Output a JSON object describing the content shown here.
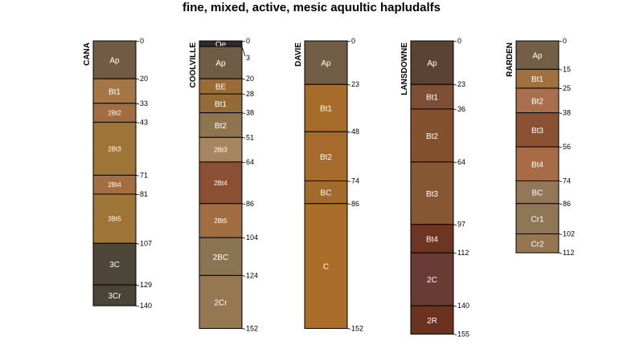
{
  "title": "fine, mixed, active, mesic aquultic hapludalfs",
  "chart_data": {
    "type": "soil-profile",
    "depth_unit": "cm",
    "profiles": [
      {
        "name": "CANA",
        "top_label": "0",
        "horizons": [
          {
            "name": "Ap",
            "top": 0,
            "bottom": 20,
            "color": "#715B45"
          },
          {
            "name": "Bt1",
            "top": 20,
            "bottom": 33,
            "color": "#A67646"
          },
          {
            "name": "2Bt2",
            "top": 33,
            "bottom": 43,
            "color": "#A06E42"
          },
          {
            "name": "2Bt3",
            "top": 43,
            "bottom": 71,
            "color": "#9E7437"
          },
          {
            "name": "2Bt4",
            "top": 71,
            "bottom": 81,
            "color": "#A56E42"
          },
          {
            "name": "3Bt5",
            "top": 81,
            "bottom": 107,
            "color": "#9E7437"
          },
          {
            "name": "3C",
            "top": 107,
            "bottom": 129,
            "color": "#4E4638"
          },
          {
            "name": "3Cr",
            "top": 129,
            "bottom": 140,
            "color": "#4A4337"
          }
        ]
      },
      {
        "name": "COOLVILLE",
        "top_label": "0",
        "horizons": [
          {
            "name": "Oe",
            "top": 0,
            "bottom": 3,
            "color": "#2D2A29"
          },
          {
            "name": "Ap",
            "top": 3,
            "bottom": 20,
            "color": "#705C45"
          },
          {
            "name": "BE",
            "top": 20,
            "bottom": 28,
            "color": "#9C6B33"
          },
          {
            "name": "Bt1",
            "top": 28,
            "bottom": 38,
            "color": "#946A35"
          },
          {
            "name": "Bt2",
            "top": 38,
            "bottom": 51,
            "color": "#8F7450"
          },
          {
            "name": "2Bt3",
            "top": 51,
            "bottom": 64,
            "color": "#A68660"
          },
          {
            "name": "2Bt4",
            "top": 64,
            "bottom": 86,
            "color": "#8B4F34"
          },
          {
            "name": "2Bt5",
            "top": 86,
            "bottom": 104,
            "color": "#A06E42"
          },
          {
            "name": "2BC",
            "top": 104,
            "bottom": 124,
            "color": "#8B7451"
          },
          {
            "name": "2Cr",
            "top": 124,
            "bottom": 152,
            "color": "#957751"
          }
        ]
      },
      {
        "name": "DAVIE",
        "top_label": "0",
        "horizons": [
          {
            "name": "Ap",
            "top": 0,
            "bottom": 23,
            "color": "#725D46"
          },
          {
            "name": "Bt1",
            "top": 23,
            "bottom": 48,
            "color": "#A76C2A"
          },
          {
            "name": "Bt2",
            "top": 48,
            "bottom": 74,
            "color": "#A56A2C"
          },
          {
            "name": "BC",
            "top": 74,
            "bottom": 86,
            "color": "#A36A2D"
          },
          {
            "name": "C",
            "top": 86,
            "bottom": 152,
            "color": "#AA6D2A"
          }
        ]
      },
      {
        "name": "LANSDOWNE",
        "top_label": "0",
        "horizons": [
          {
            "name": "Ap",
            "top": 0,
            "bottom": 23,
            "color": "#5B4333"
          },
          {
            "name": "Bt1",
            "top": 23,
            "bottom": 36,
            "color": "#7D5036"
          },
          {
            "name": "Bt2",
            "top": 36,
            "bottom": 64,
            "color": "#84512F"
          },
          {
            "name": "Bt3",
            "top": 64,
            "bottom": 97,
            "color": "#875632"
          },
          {
            "name": "Bt4",
            "top": 97,
            "bottom": 112,
            "color": "#6C3622"
          },
          {
            "name": "2C",
            "top": 112,
            "bottom": 140,
            "color": "#683C35"
          },
          {
            "name": "2R",
            "top": 140,
            "bottom": 155,
            "color": "#6B321F"
          }
        ]
      },
      {
        "name": "RARDEN",
        "top_label": "0",
        "horizons": [
          {
            "name": "Ap",
            "top": 0,
            "bottom": 15,
            "color": "#735E46"
          },
          {
            "name": "Bt1",
            "top": 15,
            "bottom": 25,
            "color": "#A0703F"
          },
          {
            "name": "Bt2",
            "top": 25,
            "bottom": 38,
            "color": "#A96F4D"
          },
          {
            "name": "Bt3",
            "top": 38,
            "bottom": 56,
            "color": "#8A5233"
          },
          {
            "name": "Bt4",
            "top": 56,
            "bottom": 74,
            "color": "#A76C45"
          },
          {
            "name": "BC",
            "top": 74,
            "bottom": 86,
            "color": "#927858"
          },
          {
            "name": "Cr1",
            "top": 86,
            "bottom": 102,
            "color": "#8F7654"
          },
          {
            "name": "Cr2",
            "top": 102,
            "bottom": 112,
            "color": "#947650"
          }
        ]
      }
    ]
  }
}
